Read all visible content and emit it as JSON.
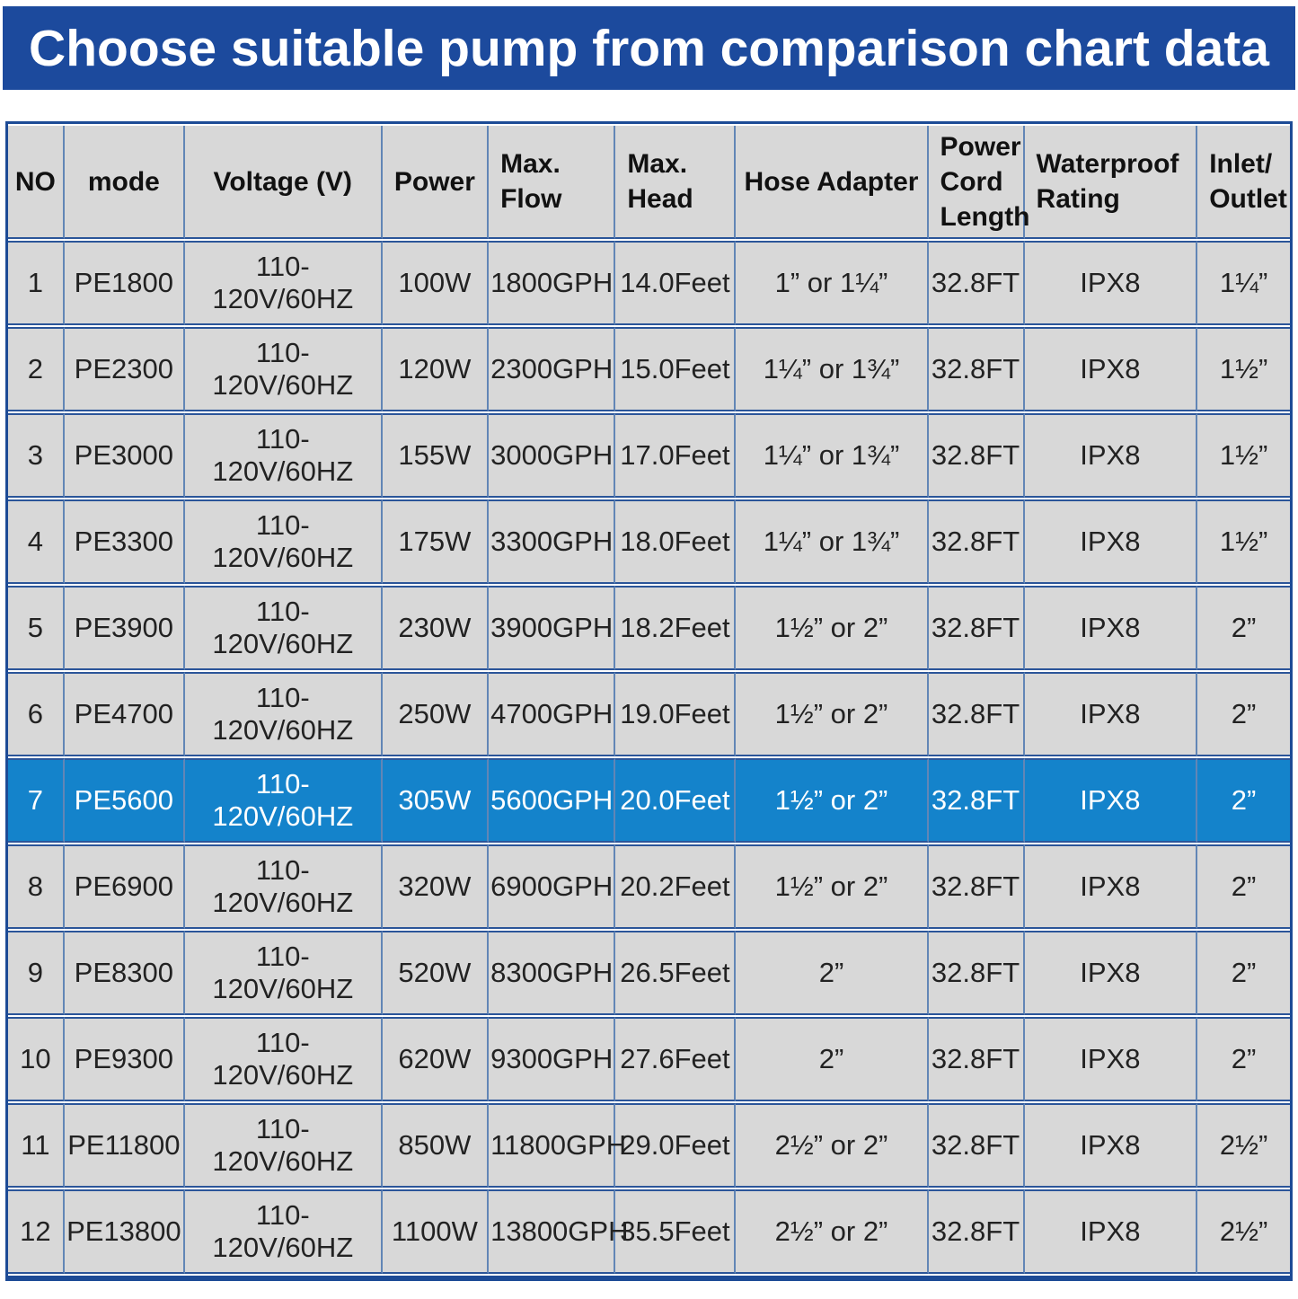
{
  "banner": {
    "title": "Choose suitable pump from comparison chart data"
  },
  "chart_data": {
    "type": "table",
    "title": "Choose suitable pump from comparison chart data",
    "columns": [
      "NO",
      "mode",
      "Voltage (V)",
      "Power",
      "Max.\nFlow",
      "Max.\nHead",
      "Hose Adapter",
      "Power\nCord\nLength",
      "Waterproof\nRating",
      "Inlet/\nOutlet"
    ],
    "rows": [
      [
        "1",
        "PE1800",
        "110-120V/60HZ",
        "100W",
        "1800GPH",
        "14.0Feet",
        "1” or 1¼”",
        "32.8FT",
        "IPX8",
        "1¼”"
      ],
      [
        "2",
        "PE2300",
        "110-120V/60HZ",
        "120W",
        "2300GPH",
        "15.0Feet",
        "1¼” or 1¾”",
        "32.8FT",
        "IPX8",
        "1½”"
      ],
      [
        "3",
        "PE3000",
        "110-120V/60HZ",
        "155W",
        "3000GPH",
        "17.0Feet",
        "1¼” or 1¾”",
        "32.8FT",
        "IPX8",
        "1½”"
      ],
      [
        "4",
        "PE3300",
        "110-120V/60HZ",
        "175W",
        "3300GPH",
        "18.0Feet",
        "1¼” or 1¾”",
        "32.8FT",
        "IPX8",
        "1½”"
      ],
      [
        "5",
        "PE3900",
        "110-120V/60HZ",
        "230W",
        "3900GPH",
        "18.2Feet",
        "1½” or 2”",
        "32.8FT",
        "IPX8",
        "2”"
      ],
      [
        "6",
        "PE4700",
        "110-120V/60HZ",
        "250W",
        "4700GPH",
        "19.0Feet",
        "1½” or 2”",
        "32.8FT",
        "IPX8",
        "2”"
      ],
      [
        "7",
        "PE5600",
        "110-120V/60HZ",
        "305W",
        "5600GPH",
        "20.0Feet",
        "1½” or 2”",
        "32.8FT",
        "IPX8",
        "2”"
      ],
      [
        "8",
        "PE6900",
        "110-120V/60HZ",
        "320W",
        "6900GPH",
        "20.2Feet",
        "1½” or 2”",
        "32.8FT",
        "IPX8",
        "2”"
      ],
      [
        "9",
        "PE8300",
        "110-120V/60HZ",
        "520W",
        "8300GPH",
        "26.5Feet",
        "2”",
        "32.8FT",
        "IPX8",
        "2”"
      ],
      [
        "10",
        "PE9300",
        "110-120V/60HZ",
        "620W",
        "9300GPH",
        "27.6Feet",
        "2”",
        "32.8FT",
        "IPX8",
        "2”"
      ],
      [
        "11",
        "PE11800",
        "110-120V/60HZ",
        "850W",
        "11800GPH",
        "29.0Feet",
        "2½” or 2”",
        "32.8FT",
        "IPX8",
        "2½”"
      ],
      [
        "12",
        "PE13800",
        "110-120V/60HZ",
        "1100W",
        "13800GPH",
        "35.5Feet",
        "2½” or 2”",
        "32.8FT",
        "IPX8",
        "2½”"
      ]
    ],
    "highlight_index": 6,
    "highlighted_model": "PE5600",
    "legend_position": "none",
    "grid": true
  },
  "colors": {
    "banner-bg": "#1c4a9d",
    "banner-text": "#ffffff",
    "cell-bg": "#d8d8d8",
    "grid-v": "#6286b6",
    "grid-h": "#2b5599",
    "frame": "#1d4b96",
    "highlight": "#1483cb",
    "highlight-text": "#ffffff",
    "body-text": "#222222"
  }
}
